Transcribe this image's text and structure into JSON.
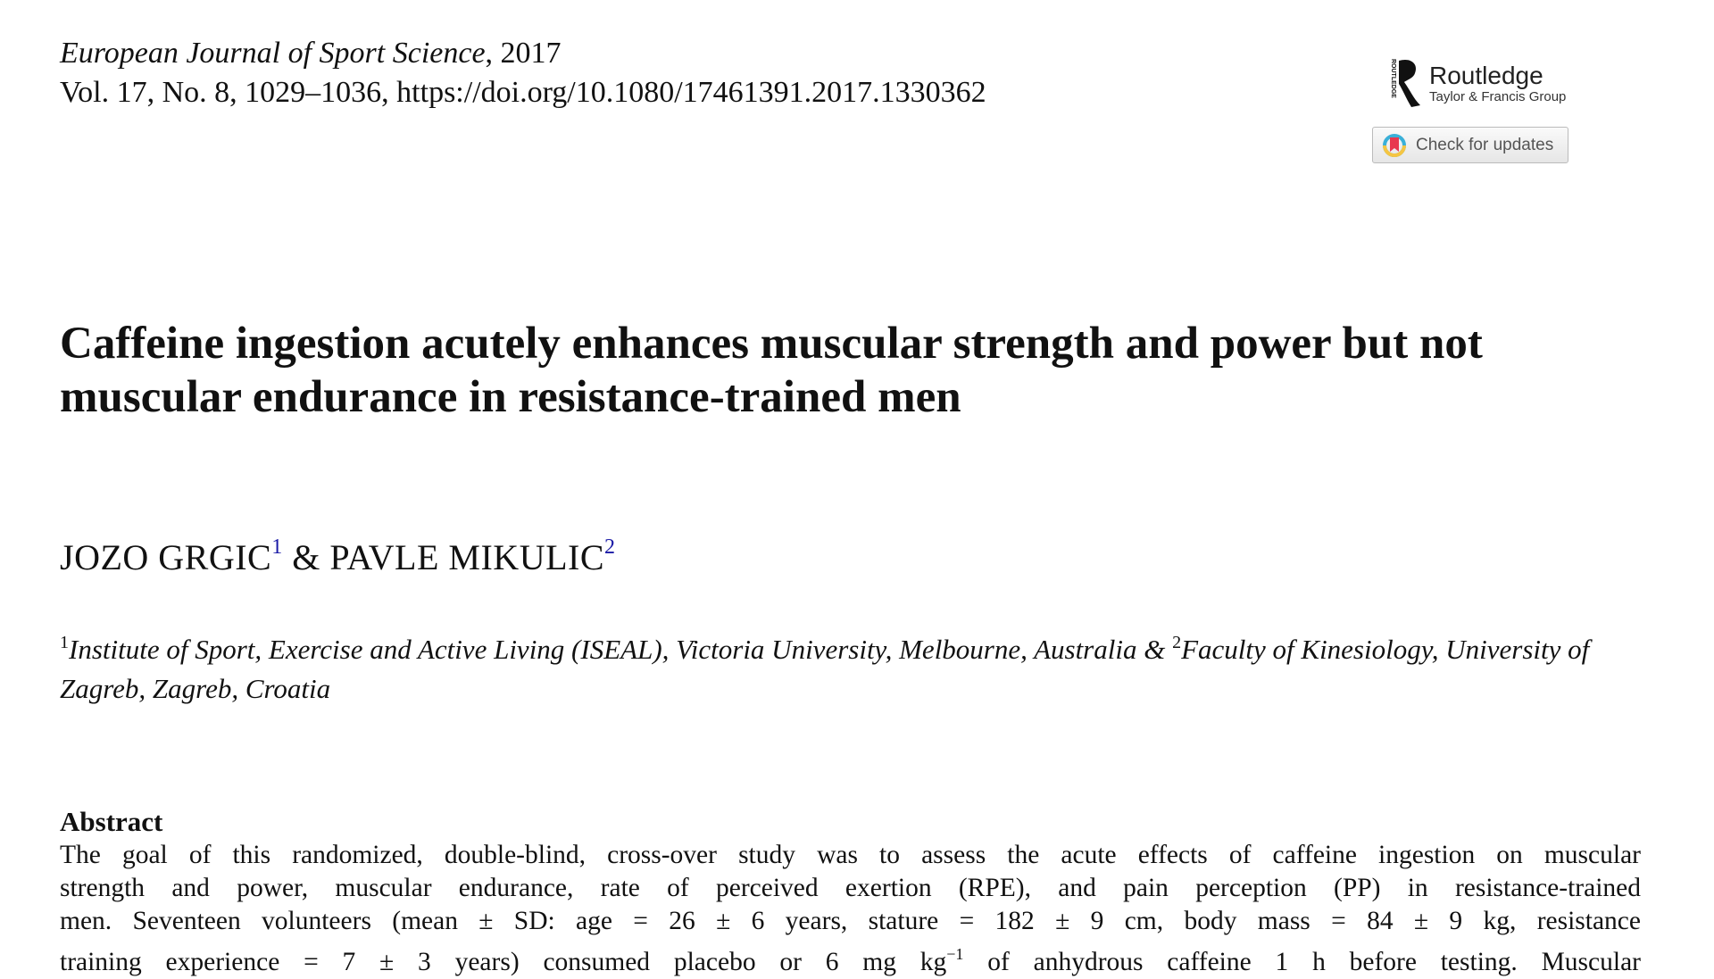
{
  "header": {
    "journal_name": "European Journal of Sport Science",
    "journal_year": ", 2017",
    "volume_line": "Vol. 17, No. 8, 1029–1036, https://doi.org/10.1080/17461391.2017.1330362"
  },
  "publisher": {
    "logo_text": "Routledge",
    "logo_subtext": "Taylor & Francis Group",
    "logo_vertical_text": "ROUTLEDGE",
    "check_updates_label": "Check for updates"
  },
  "article": {
    "title": "Caffeine ingestion acutely enhances muscular strength and power but not muscular endurance in resistance-trained men",
    "authors": [
      {
        "name": "JOZO GRGIC",
        "affil": "1"
      },
      {
        "name": "PAVLE MIKULIC",
        "affil": "2"
      }
    ],
    "author_separator": " & ",
    "affiliations": {
      "a1_num": "1",
      "a1_text": "Institute of Sport, Exercise and Active Living (ISEAL), Victoria University, Melbourne, Australia & ",
      "a2_num": "2",
      "a2_text": "Faculty of Kinesiology, University of Zagreb, Zagreb, Croatia"
    },
    "abstract_heading": "Abstract",
    "abstract_lines": [
      "The goal of this randomized, double-blind, cross-over study was to assess the acute effects of caffeine ingestion on muscular",
      "strength and power, muscular endurance, rate of perceived exertion (RPE), and pain perception (PP) in resistance-trained",
      "men. Seventeen volunteers (mean ± SD: age = 26 ± 6 years, stature = 182 ± 9 cm, body mass = 84 ± 9 kg, resistance"
    ],
    "abstract_line4_a": "training experience = 7 ± 3 years) consumed placebo or 6 mg kg",
    "abstract_line4_sup": "−1",
    "abstract_line4_b": " of anhydrous caffeine 1 h before testing. Muscular"
  }
}
